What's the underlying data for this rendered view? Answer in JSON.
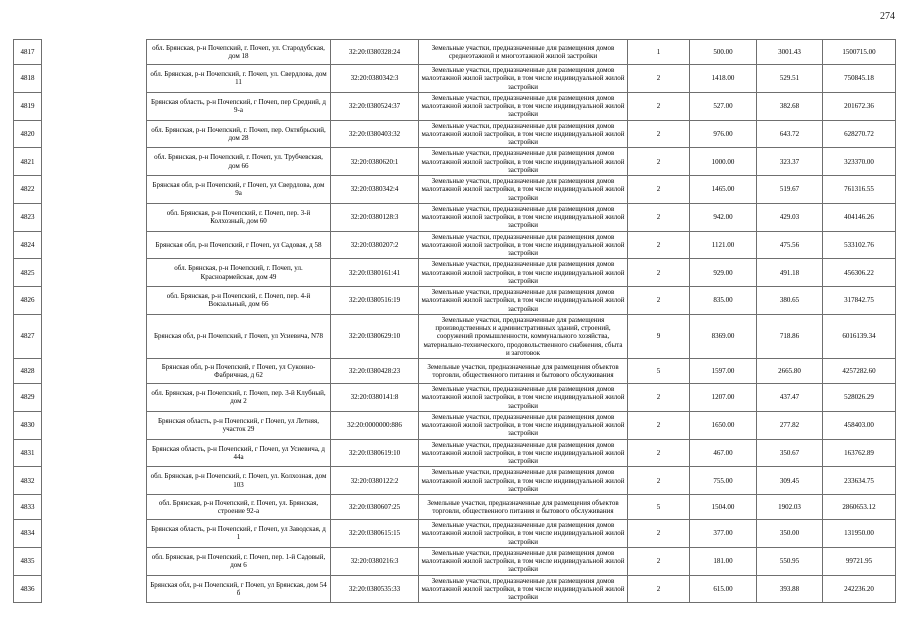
{
  "page": {
    "number": "274"
  },
  "table": {
    "rows": [
      {
        "id": "4817",
        "address": "обл. Брянская, р-н Почепский, г. Почеп, ул. Стародубская, дом 18",
        "cadastral": "32:20:0380328:24",
        "category": "Земельные участки, предназначенные для размещения домов среднеэтажной и многоэтажной жилой застройки",
        "count": "1",
        "area": "500.00",
        "unit_value": "3001.43",
        "total_value": "1500715.00"
      },
      {
        "id": "4818",
        "address": "обл. Брянская, р-н Почепский, г. Почеп, ул. Свердлова, дом 11",
        "cadastral": "32:20:0380342:3",
        "category": "Земельные участки, предназначенные для размещения домов малоэтажной жилой застройки, в том числе индивидуальной жилой застройки",
        "count": "2",
        "area": "1418.00",
        "unit_value": "529.51",
        "total_value": "750845.18"
      },
      {
        "id": "4819",
        "address": "Брянская область, р-н Почепский, г Почеп, пер Средний, д 9-а",
        "cadastral": "32:20:0380524:37",
        "category": "Земельные участки, предназначенные для размещения домов малоэтажной жилой застройки, в том числе индивидуальной жилой застройки",
        "count": "2",
        "area": "527.00",
        "unit_value": "382.68",
        "total_value": "201672.36"
      },
      {
        "id": "4820",
        "address": "обл. Брянская, р-н Почепский, г. Почеп, пер. Октябрьский, дом 28",
        "cadastral": "32:20:0380403:32",
        "category": "Земельные участки, предназначенные для размещения домов малоэтажной жилой застройки, в том числе индивидуальной жилой застройки",
        "count": "2",
        "area": "976.00",
        "unit_value": "643.72",
        "total_value": "628270.72"
      },
      {
        "id": "4821",
        "address": "обл. Брянская, р-н Почепский, г. Почеп, ул. Трубчевская, дом 66",
        "cadastral": "32:20:0380620:1",
        "category": "Земельные участки, предназначенные для размещения домов малоэтажной жилой застройки, в том числе индивидуальной жилой застройки",
        "count": "2",
        "area": "1000.00",
        "unit_value": "323.37",
        "total_value": "323370.00"
      },
      {
        "id": "4822",
        "address": "Брянская обл, р-н Почепский, г Почеп, ул Свердлова, дом 9а",
        "cadastral": "32:20:0380342:4",
        "category": "Земельные участки, предназначенные для размещения домов малоэтажной жилой застройки, в том числе индивидуальной жилой застройки",
        "count": "2",
        "area": "1465.00",
        "unit_value": "519.67",
        "total_value": "761316.55"
      },
      {
        "id": "4823",
        "address": "обл. Брянская, р-н Почепский, г. Почеп, пер. 3-й Колхозный, дом 60",
        "cadastral": "32:20:0380128:3",
        "category": "Земельные участки, предназначенные для размещения домов малоэтажной жилой застройки, в том числе индивидуальной жилой застройки",
        "count": "2",
        "area": "942.00",
        "unit_value": "429.03",
        "total_value": "404146.26"
      },
      {
        "id": "4824",
        "address": "Брянская обл, р-н Почепский, г Почеп, ул Садовая, д 58",
        "cadastral": "32:20:0380207:2",
        "category": "Земельные участки, предназначенные для размещения домов малоэтажной жилой застройки, в том числе индивидуальной жилой застройки",
        "count": "2",
        "area": "1121.00",
        "unit_value": "475.56",
        "total_value": "533102.76"
      },
      {
        "id": "4825",
        "address": "обл. Брянская, р-н Почепский, г. Почеп, ул. Красноармейская, дом 49",
        "cadastral": "32:20:0380161:41",
        "category": "Земельные участки, предназначенные для размещения домов малоэтажной жилой застройки, в том числе индивидуальной жилой застройки",
        "count": "2",
        "area": "929.00",
        "unit_value": "491.18",
        "total_value": "456306.22"
      },
      {
        "id": "4826",
        "address": "обл. Брянская, р-н Почепский, г. Почеп, пер. 4-й Вокзальный, дом 66",
        "cadastral": "32:20:0380516:19",
        "category": "Земельные участки, предназначенные для размещения домов малоэтажной жилой застройки, в том числе индивидуальной жилой застройки",
        "count": "2",
        "area": "835.00",
        "unit_value": "380.65",
        "total_value": "317842.75"
      },
      {
        "id": "4827",
        "address": "Брянская обл, р-н Почепский, г Почеп, ул Усиевича, N78",
        "cadastral": "32:20:0380629:10",
        "category": "Земельные участки, предназначенные для размещения производственных и административных зданий, строений, сооружений промышленности, коммунального хозяйства, материально-технического, продовольственного снабжения, сбыта и заготовок",
        "count": "9",
        "area": "8369.00",
        "unit_value": "718.86",
        "total_value": "6016139.34"
      },
      {
        "id": "4828",
        "address": "Брянская обл, р-н Почепский, г Почеп, ул Суконно-Фабричная, д 62",
        "cadastral": "32:20:0380428:23",
        "category": "Земельные участки, предназначенные для размещения объектов торговли, общественного питания и бытового обслуживания",
        "count": "5",
        "area": "1597.00",
        "unit_value": "2665.80",
        "total_value": "4257282.60"
      },
      {
        "id": "4829",
        "address": "обл. Брянская, р-н Почепский, г. Почеп, пер. 3-й Клубный, дом 2",
        "cadastral": "32:20:0380141:8",
        "category": "Земельные участки, предназначенные для размещения домов малоэтажной жилой застройки, в том числе индивидуальной жилой застройки",
        "count": "2",
        "area": "1207.00",
        "unit_value": "437.47",
        "total_value": "528026.29"
      },
      {
        "id": "4830",
        "address": "Брянская область, р-н Почепский, г Почеп, ул Летняя, участок 29",
        "cadastral": "32:20:0000000:886",
        "category": "Земельные участки, предназначенные для размещения домов малоэтажной жилой застройки, в том числе индивидуальной жилой застройки",
        "count": "2",
        "area": "1650.00",
        "unit_value": "277.82",
        "total_value": "458403.00"
      },
      {
        "id": "4831",
        "address": "Брянская область, р-н Почепский, г Почеп, ул Усиевича, д 44а",
        "cadastral": "32:20:0380619:10",
        "category": "Земельные участки, предназначенные для размещения домов малоэтажной жилой застройки, в том числе индивидуальной жилой застройки",
        "count": "2",
        "area": "467.00",
        "unit_value": "350.67",
        "total_value": "163762.89"
      },
      {
        "id": "4832",
        "address": "обл. Брянская, р-н Почепский, г. Почеп, ул. Колхозная, дом 103",
        "cadastral": "32:20:0380122:2",
        "category": "Земельные участки, предназначенные для размещения домов малоэтажной жилой застройки, в том числе индивидуальной жилой застройки",
        "count": "2",
        "area": "755.00",
        "unit_value": "309.45",
        "total_value": "233634.75"
      },
      {
        "id": "4833",
        "address": "обл. Брянская, р-н Почепский, г. Почеп, ул. Брянская, строение 92-а",
        "cadastral": "32:20:0380607:25",
        "category": "Земельные участки, предназначенные для размещения объектов торговли, общественного питания и бытового обслуживания",
        "count": "5",
        "area": "1504.00",
        "unit_value": "1902.03",
        "total_value": "2860653.12"
      },
      {
        "id": "4834",
        "address": "Брянская область, р-н Почепский, г Почеп, ул Заводская, д 1",
        "cadastral": "32:20:0380615:15",
        "category": "Земельные участки, предназначенные для размещения домов малоэтажной жилой застройки, в том числе индивидуальной жилой застройки",
        "count": "2",
        "area": "377.00",
        "unit_value": "350.00",
        "total_value": "131950.00"
      },
      {
        "id": "4835",
        "address": "обл. Брянская, р-н Почепский, г. Почеп, пер. 1-й Садовый, дом 6",
        "cadastral": "32:20:0380216:3",
        "category": "Земельные участки, предназначенные для размещения домов малоэтажной жилой застройки, в том числе индивидуальной жилой застройки",
        "count": "2",
        "area": "181.00",
        "unit_value": "550.95",
        "total_value": "99721.95"
      },
      {
        "id": "4836",
        "address": "Брянская обл, р-н Почепский, г Почеп, ул Брянская, дом 54 б",
        "cadastral": "32:20:0380535:33",
        "category": "Земельные участки, предназначенные для размещения домов малоэтажной жилой застройки, в том числе индивидуальной жилой застройки",
        "count": "2",
        "area": "615.00",
        "unit_value": "393.88",
        "total_value": "242236.20"
      }
    ]
  }
}
